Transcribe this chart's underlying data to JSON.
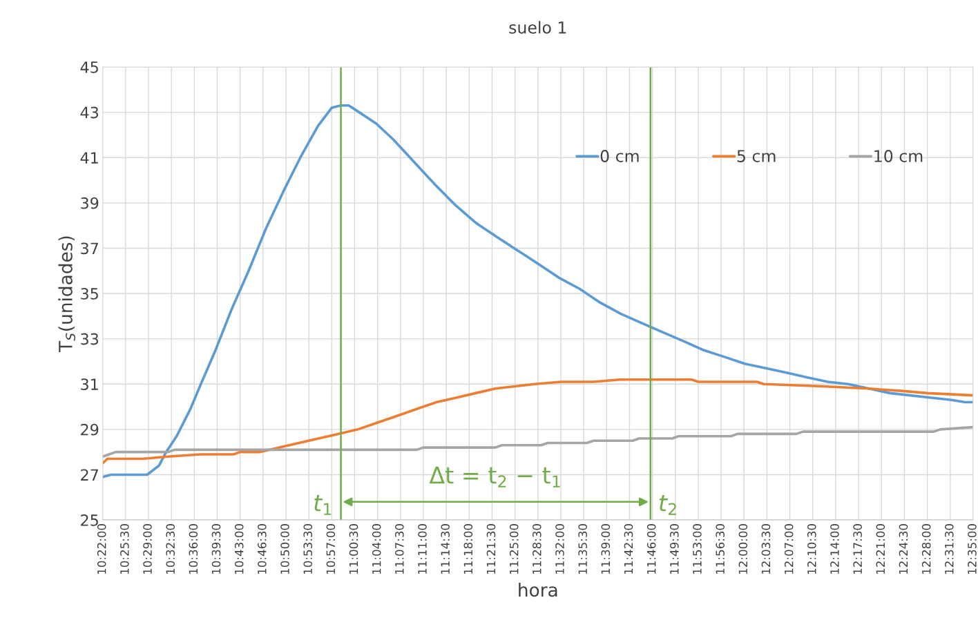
{
  "chart_data": {
    "type": "line",
    "title": "suelo 1",
    "xlabel": "hora",
    "ylabel": "T$_{S}$(unidades)",
    "xlim": [
      10.3667,
      12.5833
    ],
    "ylim": [
      25,
      45
    ],
    "yticks": [
      25,
      27,
      29,
      31,
      33,
      35,
      37,
      39,
      41,
      43,
      45
    ],
    "xticks": [
      {
        "value": 10.3667,
        "label": "10:22:00"
      },
      {
        "value": 10.425,
        "label": "10:25:30"
      },
      {
        "value": 10.4833,
        "label": "10:29:00"
      },
      {
        "value": 10.5417,
        "label": "10:32:30"
      },
      {
        "value": 10.6,
        "label": "10:36:00"
      },
      {
        "value": 10.6583,
        "label": "10:39:30"
      },
      {
        "value": 10.7167,
        "label": "10:43:00"
      },
      {
        "value": 10.775,
        "label": "10:46:30"
      },
      {
        "value": 10.8333,
        "label": "10:50:00"
      },
      {
        "value": 10.8917,
        "label": "10:53:30"
      },
      {
        "value": 10.95,
        "label": "10:57:00"
      },
      {
        "value": 11.0083,
        "label": "11:00:30"
      },
      {
        "value": 11.0667,
        "label": "11:04:00"
      },
      {
        "value": 11.125,
        "label": "11:07:30"
      },
      {
        "value": 11.1833,
        "label": "11:11:00"
      },
      {
        "value": 11.2417,
        "label": "11:14:30"
      },
      {
        "value": 11.3,
        "label": "11:18:00"
      },
      {
        "value": 11.3583,
        "label": "11:21:30"
      },
      {
        "value": 11.4167,
        "label": "11:25:00"
      },
      {
        "value": 11.475,
        "label": "11:28:30"
      },
      {
        "value": 11.5333,
        "label": "11:32:00"
      },
      {
        "value": 11.5917,
        "label": "11:35:30"
      },
      {
        "value": 11.65,
        "label": "11:39:00"
      },
      {
        "value": 11.7083,
        "label": "11:42:30"
      },
      {
        "value": 11.7667,
        "label": "11:46:00"
      },
      {
        "value": 11.825,
        "label": "11:49:30"
      },
      {
        "value": 11.8833,
        "label": "11:53:00"
      },
      {
        "value": 11.9417,
        "label": "11:56:30"
      },
      {
        "value": 12.0,
        "label": "12:00:00"
      },
      {
        "value": 12.0583,
        "label": "12:03:30"
      },
      {
        "value": 12.1167,
        "label": "12:07:00"
      },
      {
        "value": 12.175,
        "label": "12:10:30"
      },
      {
        "value": 12.2333,
        "label": "12:14:00"
      },
      {
        "value": 12.2917,
        "label": "12:17:30"
      },
      {
        "value": 12.35,
        "label": "12:21:00"
      },
      {
        "value": 12.4083,
        "label": "12:24:30"
      },
      {
        "value": 12.4667,
        "label": "12:28:00"
      },
      {
        "value": 12.525,
        "label": "12:31:30"
      },
      {
        "value": 12.5833,
        "label": "12:35:00"
      }
    ],
    "grid": true,
    "legend": "top right",
    "marker": "none",
    "line_style": "solid",
    "series": [
      {
        "name": "0 cm",
        "color": "#5b9bd5",
        "x": [
          10.3667,
          10.3883,
          10.48,
          10.51,
          10.5283,
          10.555,
          10.59,
          10.6167,
          10.6517,
          10.695,
          10.7383,
          10.7833,
          10.8267,
          10.87,
          10.915,
          10.95,
          10.9733,
          10.9933,
          11.02,
          11.0633,
          11.1067,
          11.16,
          11.2133,
          11.265,
          11.3183,
          11.37,
          11.4233,
          11.4767,
          11.5283,
          11.5817,
          11.6333,
          11.6867,
          11.7383,
          11.7917,
          11.845,
          11.8967,
          11.95,
          12.0017,
          12.055,
          12.1083,
          12.16,
          12.2133,
          12.265,
          12.3183,
          12.3717,
          12.4233,
          12.4767,
          12.5283,
          12.5633,
          12.5833
        ],
        "values": [
          26.9,
          27.0,
          27.0,
          27.4,
          28.0,
          28.7,
          29.9,
          31.0,
          32.4,
          34.3,
          36.0,
          37.9,
          39.5,
          41.0,
          42.4,
          43.2,
          43.3,
          43.3,
          43.0,
          42.5,
          41.8,
          40.8,
          39.8,
          38.9,
          38.1,
          37.5,
          36.9,
          36.3,
          35.7,
          35.2,
          34.6,
          34.1,
          33.7,
          33.3,
          32.9,
          32.5,
          32.2,
          31.9,
          31.7,
          31.5,
          31.3,
          31.1,
          31.0,
          30.8,
          30.6,
          30.5,
          30.4,
          30.3,
          30.2,
          30.2
        ]
      },
      {
        "name": "5 cm",
        "color": "#ed7d31",
        "x": [
          10.3667,
          10.3783,
          10.4667,
          10.5333,
          10.6167,
          10.7,
          10.7167,
          10.7667,
          10.8167,
          10.8667,
          10.9167,
          10.9667,
          11.0167,
          11.0667,
          11.1167,
          11.1667,
          11.2167,
          11.2667,
          11.3167,
          11.3667,
          11.4167,
          11.4667,
          11.5333,
          11.6167,
          11.6833,
          11.8667,
          11.8833,
          12.0333,
          12.05,
          12.2,
          12.3167,
          12.4,
          12.4667,
          12.5833
        ],
        "values": [
          27.5,
          27.7,
          27.7,
          27.8,
          27.9,
          27.9,
          28.0,
          28.0,
          28.2,
          28.4,
          28.6,
          28.8,
          29.0,
          29.3,
          29.6,
          29.9,
          30.2,
          30.4,
          30.6,
          30.8,
          30.9,
          31.0,
          31.1,
          31.1,
          31.2,
          31.2,
          31.1,
          31.1,
          31.0,
          30.9,
          30.8,
          30.7,
          30.6,
          30.5
        ]
      },
      {
        "name": "10 cm",
        "color": "#a5a5a5",
        "x": [
          10.3667,
          10.3833,
          10.4,
          10.5333,
          10.55,
          11.1667,
          11.1833,
          11.3667,
          11.3833,
          11.4833,
          11.5,
          11.6,
          11.6167,
          11.7167,
          11.7333,
          11.8167,
          11.8333,
          11.9667,
          11.9833,
          12.1333,
          12.15,
          12.4833,
          12.5,
          12.5833
        ],
        "values": [
          27.8,
          27.9,
          28.0,
          28.0,
          28.1,
          28.1,
          28.2,
          28.2,
          28.3,
          28.3,
          28.4,
          28.4,
          28.5,
          28.5,
          28.6,
          28.6,
          28.7,
          28.7,
          28.8,
          28.8,
          28.9,
          28.9,
          29.0,
          29.1
        ]
      }
    ],
    "ref_lines": [
      {
        "axis": "x",
        "value": 10.9733,
        "label": "t$_{1}$",
        "color": "#70ad47"
      },
      {
        "axis": "x",
        "value": 11.7617,
        "label": "t$_{2}$",
        "color": "#70ad47"
      }
    ],
    "annotations": [
      "Δt = t$_{2}$ − t$_{1}$"
    ]
  }
}
